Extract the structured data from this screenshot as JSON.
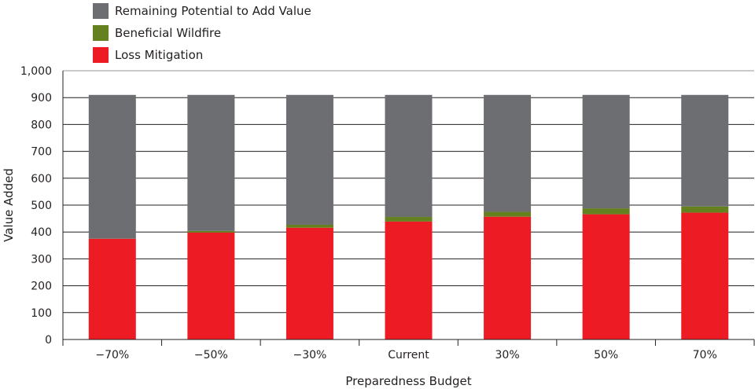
{
  "chart_data": {
    "type": "bar",
    "stacked": true,
    "title": "",
    "xlabel": "Preparedness Budget",
    "ylabel": "Value Added",
    "ylim": [
      0,
      1000
    ],
    "yticks": [
      "0",
      "100",
      "200",
      "300",
      "400",
      "500",
      "600",
      "700",
      "800",
      "900",
      "1,000"
    ],
    "ytick_values": [
      0,
      100,
      200,
      300,
      400,
      500,
      600,
      700,
      800,
      900,
      1000
    ],
    "grid": true,
    "legend_position": "top-left",
    "categories": [
      "−70%",
      "−50%",
      "−30%",
      "Current",
      "30%",
      "50%",
      "70%"
    ],
    "series": [
      {
        "name": "Loss Mitigation",
        "color": "#ed1c24",
        "values": [
          375,
          398,
          416,
          439,
          457,
          466,
          472
        ]
      },
      {
        "name": "Beneficial Wildfire",
        "color": "#64801f",
        "values": [
          0,
          6,
          11,
          17,
          18,
          22,
          23
        ]
      },
      {
        "name": "Remaining Potential to Add Value",
        "color": "#6d6e71",
        "values": [
          535,
          506,
          483,
          454,
          435,
          422,
          415
        ]
      }
    ]
  }
}
